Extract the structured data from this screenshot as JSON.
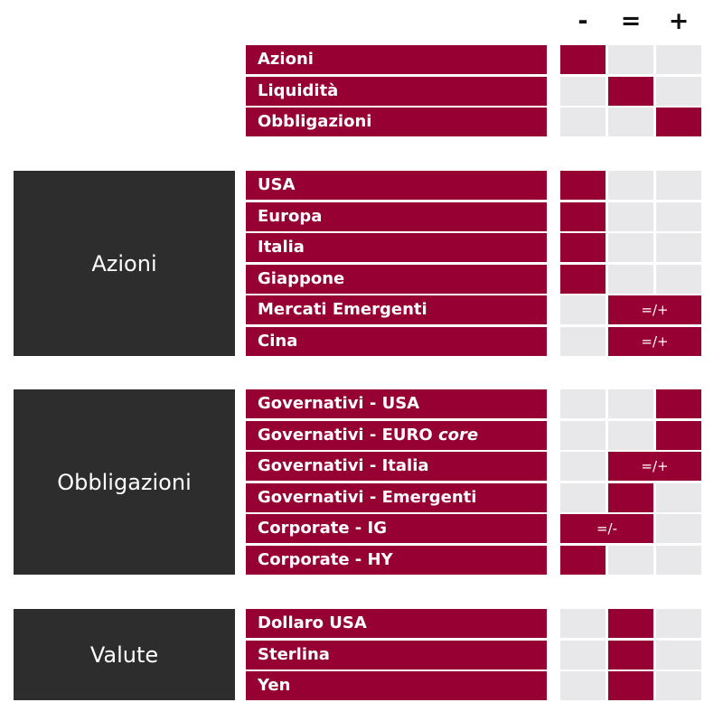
{
  "header": {
    "minus": "-",
    "equal": "=",
    "plus": "+"
  },
  "groups": [
    {
      "category": "",
      "rows": [
        {
          "label": "Azioni",
          "rating": "-"
        },
        {
          "label": "Liquidità",
          "rating": "="
        },
        {
          "label": "Obbligazioni",
          "rating": "+"
        }
      ]
    },
    {
      "category": "Azioni",
      "rows": [
        {
          "label": "USA",
          "rating": "-"
        },
        {
          "label": "Europa",
          "rating": "-"
        },
        {
          "label": "Italia",
          "rating": "-"
        },
        {
          "label": "Giappone",
          "rating": "-"
        },
        {
          "label": "Mercati Emergenti",
          "rating": "=/+",
          "span_text": "=/+"
        },
        {
          "label": "Cina",
          "rating": "=/+",
          "span_text": "=/+"
        }
      ]
    },
    {
      "category": "Obbligazioni",
      "rows": [
        {
          "label": "Governativi - USA",
          "rating": "+"
        },
        {
          "label": "Governativi - EURO ",
          "label_italic": "core",
          "rating": "+"
        },
        {
          "label": "Governativi - Italia",
          "rating": "=/+",
          "span_text": "=/+"
        },
        {
          "label": "Governativi - Emergenti",
          "rating": "="
        },
        {
          "label": "Corporate - IG",
          "rating": "=/-",
          "span_text": "=/-"
        },
        {
          "label": "Corporate - HY",
          "rating": "-"
        }
      ]
    },
    {
      "category": "Valute",
      "rows": [
        {
          "label": "Dollaro USA",
          "rating": "="
        },
        {
          "label": "Sterlina",
          "rating": "="
        },
        {
          "label": "Yen",
          "rating": "="
        }
      ]
    }
  ],
  "colors": {
    "accent": "#960033",
    "empty_cell": "#e8e8ea",
    "category_bg": "#2d2d2d"
  }
}
